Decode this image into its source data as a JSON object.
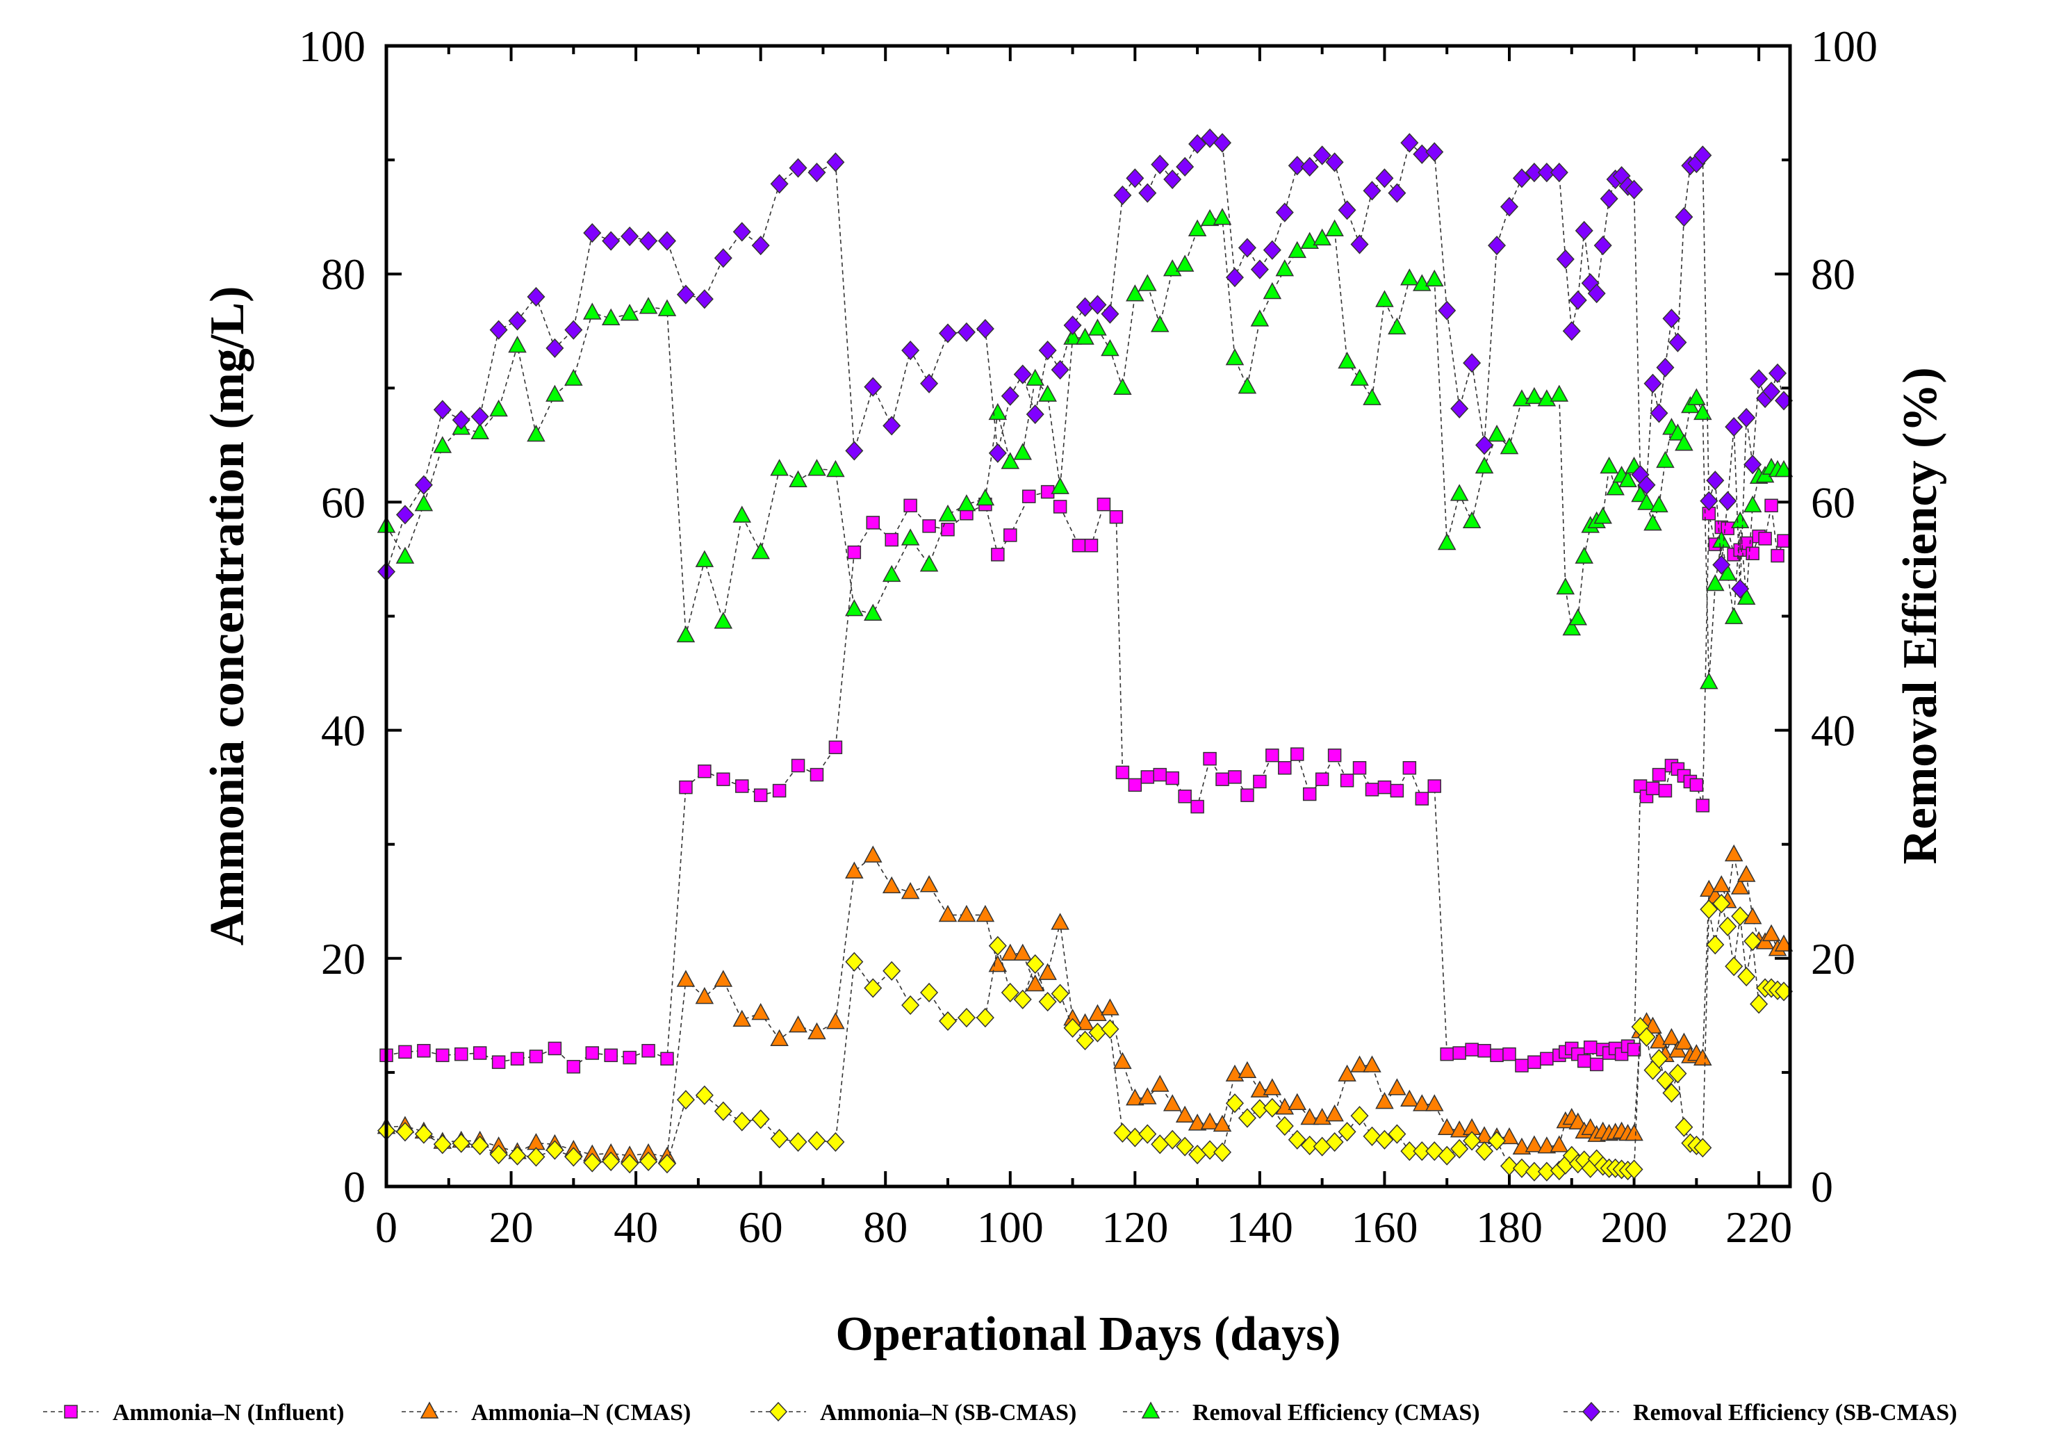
{
  "chart_data": {
    "type": "scatter",
    "xlabel": "Operational Days (days)",
    "ylabel": "Ammonia concentration (mg/L)",
    "y2label": "Removal Efficiency (%)",
    "xlim": [
      0,
      225
    ],
    "ylim": [
      0,
      100
    ],
    "y2lim": [
      0,
      100
    ],
    "xticks": [
      "0",
      "20",
      "40",
      "60",
      "80",
      "100",
      "120",
      "140",
      "160",
      "180",
      "200",
      "220"
    ],
    "yticks": [
      "0",
      "20",
      "40",
      "60",
      "80",
      "100"
    ],
    "y2ticks": [
      "0",
      "20",
      "40",
      "60",
      "80",
      "100"
    ],
    "legend_position": "bottom",
    "series": [
      {
        "name": "Ammonia–N (Influent)",
        "axis": "left",
        "marker": "square",
        "color": "#ff00ff",
        "x": [
          0,
          3,
          6,
          9,
          12,
          15,
          18,
          21,
          24,
          27,
          30,
          33,
          36,
          39,
          42,
          45,
          48,
          51,
          54,
          57,
          60,
          63,
          66,
          69,
          72,
          75,
          78,
          81,
          84,
          87,
          90,
          93,
          96,
          98,
          100,
          103,
          106,
          108,
          111,
          113,
          115,
          117,
          118,
          120,
          122,
          124,
          126,
          128,
          130,
          132,
          134,
          136,
          138,
          140,
          142,
          144,
          146,
          148,
          150,
          152,
          154,
          156,
          158,
          160,
          162,
          164,
          166,
          168,
          170,
          172,
          174,
          176,
          178,
          180,
          182,
          184,
          186,
          188,
          189,
          190,
          191,
          192,
          193,
          194,
          195,
          196,
          197,
          198,
          199,
          200,
          201,
          202,
          203,
          204,
          205,
          206,
          207,
          208,
          209,
          210,
          211,
          212,
          213,
          214,
          215,
          216,
          217,
          218,
          219,
          220,
          221,
          222,
          223,
          224
        ],
        "values": [
          11.5,
          11.8,
          11.9,
          11.5,
          11.6,
          11.7,
          10.9,
          11.2,
          11.4,
          12.1,
          10.5,
          11.7,
          11.5,
          11.3,
          11.9,
          11.2,
          35.0,
          36.4,
          35.7,
          35.1,
          34.3,
          34.7,
          36.9,
          36.1,
          38.5,
          55.6,
          58.2,
          56.7,
          59.7,
          57.9,
          57.6,
          59.0,
          59.8,
          55.4,
          57.1,
          60.5,
          60.9,
          59.6,
          56.2,
          56.2,
          59.8,
          58.7,
          36.3,
          35.2,
          35.9,
          36.1,
          35.8,
          34.2,
          33.3,
          37.5,
          35.7,
          35.9,
          34.3,
          35.5,
          37.8,
          36.7,
          37.9,
          34.4,
          35.7,
          37.8,
          35.6,
          36.7,
          34.8,
          35.0,
          34.7,
          36.7,
          34.0,
          35.1,
          11.6,
          11.7,
          12.0,
          11.9,
          11.5,
          11.6,
          10.6,
          10.9,
          11.2,
          11.5,
          11.8,
          12.1,
          11.6,
          11.0,
          12.2,
          10.7,
          12.0,
          11.7,
          12.1,
          11.6,
          12.3,
          12.0,
          35.1,
          34.2,
          34.9,
          36.1,
          34.7,
          36.9,
          36.6,
          36.0,
          35.5,
          35.2,
          33.4,
          59.0,
          56.3,
          57.8,
          57.7,
          55.4,
          55.8,
          56.4,
          55.5,
          57.0,
          56.8,
          59.7,
          55.3,
          56.6
        ]
      },
      {
        "name": "Ammonia–N (CMAS)",
        "axis": "left",
        "marker": "triangle",
        "color": "#ff7f00",
        "x": [
          0,
          3,
          6,
          9,
          12,
          15,
          18,
          21,
          24,
          27,
          30,
          33,
          36,
          39,
          42,
          45,
          48,
          51,
          54,
          57,
          60,
          63,
          66,
          69,
          72,
          75,
          78,
          81,
          84,
          87,
          90,
          93,
          96,
          98,
          100,
          102,
          104,
          106,
          108,
          110,
          112,
          114,
          116,
          118,
          120,
          122,
          124,
          126,
          128,
          130,
          132,
          134,
          136,
          138,
          140,
          142,
          144,
          146,
          148,
          150,
          152,
          154,
          156,
          158,
          160,
          162,
          164,
          166,
          168,
          170,
          172,
          174,
          176,
          178,
          180,
          182,
          184,
          186,
          188,
          189,
          190,
          191,
          192,
          193,
          194,
          195,
          196,
          197,
          198,
          199,
          200,
          201,
          202,
          203,
          204,
          205,
          206,
          207,
          208,
          209,
          210,
          211,
          212,
          213,
          214,
          215,
          216,
          217,
          218,
          219,
          220,
          221,
          222,
          223,
          224
        ],
        "values": [
          5.2,
          5.3,
          4.8,
          3.9,
          4.0,
          4.0,
          3.5,
          3.0,
          3.8,
          3.7,
          3.2,
          2.8,
          2.9,
          2.7,
          2.9,
          2.6,
          18.1,
          16.6,
          18.1,
          14.6,
          15.2,
          12.9,
          14.1,
          13.5,
          14.4,
          27.6,
          29.0,
          26.3,
          25.8,
          26.4,
          23.8,
          23.8,
          23.8,
          19.4,
          20.4,
          20.4,
          17.7,
          18.7,
          23.1,
          14.7,
          14.3,
          15.1,
          15.6,
          10.9,
          7.7,
          7.8,
          8.9,
          7.2,
          6.2,
          5.5,
          5.6,
          5.4,
          9.8,
          10.1,
          8.4,
          8.6,
          6.9,
          7.3,
          6.0,
          6.0,
          6.3,
          9.8,
          10.6,
          10.6,
          7.4,
          8.6,
          7.6,
          7.2,
          7.2,
          5.1,
          4.9,
          5.1,
          4.4,
          4.3,
          4.3,
          3.4,
          3.6,
          3.5,
          3.6,
          5.7,
          6.0,
          5.6,
          4.8,
          5.1,
          4.5,
          4.8,
          4.6,
          4.7,
          4.8,
          4.6,
          4.6,
          13.6,
          14.4,
          14.0,
          12.7,
          11.5,
          13.0,
          11.9,
          12.6,
          11.4,
          11.6,
          11.2,
          26.0,
          25.4,
          26.4,
          25.0,
          29.1,
          26.2,
          27.3,
          23.6,
          21.5,
          21.4,
          22.1,
          20.8,
          21.2
        ]
      },
      {
        "name": "Ammonia–N (SB-CMAS)",
        "axis": "left",
        "marker": "diamond",
        "color": "#ffff00",
        "x": [
          0,
          3,
          6,
          9,
          12,
          15,
          18,
          21,
          24,
          27,
          30,
          33,
          36,
          39,
          42,
          45,
          48,
          51,
          54,
          57,
          60,
          63,
          66,
          69,
          72,
          75,
          78,
          81,
          84,
          87,
          90,
          93,
          96,
          98,
          100,
          102,
          104,
          106,
          108,
          110,
          112,
          114,
          116,
          118,
          120,
          122,
          124,
          126,
          128,
          130,
          132,
          134,
          136,
          138,
          140,
          142,
          144,
          146,
          148,
          150,
          152,
          154,
          156,
          158,
          160,
          162,
          164,
          166,
          168,
          170,
          172,
          174,
          176,
          178,
          180,
          182,
          184,
          186,
          188,
          189,
          190,
          191,
          192,
          193,
          194,
          195,
          196,
          197,
          198,
          199,
          200,
          201,
          202,
          203,
          204,
          205,
          206,
          207,
          208,
          209,
          210,
          211,
          212,
          213,
          214,
          215,
          216,
          217,
          218,
          219,
          220,
          221,
          222,
          223,
          224
        ],
        "values": [
          4.9,
          4.8,
          4.6,
          3.7,
          3.8,
          3.6,
          2.8,
          2.7,
          2.6,
          3.2,
          2.6,
          2.1,
          2.2,
          2.0,
          2.2,
          2.0,
          7.6,
          8.0,
          6.6,
          5.7,
          5.9,
          4.2,
          3.9,
          4.0,
          3.9,
          19.7,
          17.4,
          18.9,
          15.9,
          17.0,
          14.5,
          14.8,
          14.8,
          21.1,
          17.0,
          16.4,
          19.5,
          16.2,
          16.9,
          13.9,
          12.8,
          13.5,
          13.8,
          4.7,
          4.3,
          4.6,
          3.7,
          4.1,
          3.5,
          2.8,
          3.2,
          3.0,
          7.3,
          6.0,
          6.8,
          6.9,
          5.3,
          4.1,
          3.6,
          3.5,
          3.9,
          4.8,
          6.2,
          4.4,
          4.1,
          4.6,
          3.1,
          3.1,
          3.1,
          2.7,
          3.3,
          4.0,
          3.1,
          4.0,
          1.8,
          1.6,
          1.3,
          1.3,
          1.4,
          1.9,
          2.7,
          2.0,
          2.3,
          1.6,
          2.4,
          1.8,
          1.6,
          1.6,
          1.5,
          1.4,
          1.5,
          14.0,
          13.1,
          10.2,
          11.2,
          9.3,
          8.2,
          9.9,
          5.2,
          3.8,
          3.6,
          3.4,
          24.3,
          21.2,
          24.8,
          22.8,
          19.3,
          23.7,
          18.4,
          21.5,
          16.0,
          17.4,
          17.4,
          17.2,
          17.1
        ]
      },
      {
        "name": "Removal Efficiency (CMAS)",
        "axis": "right",
        "marker": "triangle",
        "color": "#00ff00",
        "x": [
          0,
          3,
          6,
          9,
          12,
          15,
          18,
          21,
          24,
          27,
          30,
          33,
          36,
          39,
          42,
          45,
          48,
          51,
          54,
          57,
          60,
          63,
          66,
          69,
          72,
          75,
          78,
          81,
          84,
          87,
          90,
          93,
          96,
          98,
          100,
          102,
          104,
          106,
          108,
          110,
          112,
          114,
          116,
          118,
          120,
          122,
          124,
          126,
          128,
          130,
          132,
          134,
          136,
          138,
          140,
          142,
          144,
          146,
          148,
          150,
          152,
          154,
          156,
          158,
          160,
          162,
          164,
          166,
          168,
          170,
          172,
          174,
          176,
          178,
          180,
          182,
          184,
          186,
          188,
          189,
          190,
          191,
          192,
          193,
          194,
          195,
          196,
          197,
          198,
          199,
          200,
          201,
          202,
          203,
          204,
          205,
          206,
          207,
          208,
          209,
          210,
          211,
          212,
          213,
          214,
          215,
          216,
          217,
          218,
          219,
          220,
          221,
          222,
          223,
          224
        ],
        "values": [
          57.9,
          55.2,
          59.8,
          64.9,
          66.5,
          66.1,
          68.1,
          73.7,
          65.9,
          69.4,
          70.8,
          76.6,
          76.1,
          76.5,
          77.1,
          76.9,
          48.3,
          54.9,
          49.5,
          58.8,
          55.6,
          62.9,
          61.9,
          62.9,
          62.8,
          50.6,
          50.2,
          53.6,
          56.8,
          54.5,
          58.9,
          59.8,
          60.3,
          67.8,
          63.5,
          64.3,
          70.8,
          69.4,
          61.3,
          74.4,
          74.4,
          75.2,
          73.4,
          70.0,
          78.2,
          79.1,
          75.5,
          80.4,
          80.8,
          83.9,
          84.8,
          84.9,
          72.6,
          70.1,
          76.0,
          78.4,
          80.4,
          82.0,
          82.8,
          83.1,
          83.9,
          72.3,
          70.8,
          69.1,
          77.7,
          75.3,
          79.6,
          79.1,
          79.5,
          56.4,
          60.7,
          58.3,
          63.1,
          65.9,
          64.8,
          69.0,
          69.2,
          69.0,
          69.4,
          52.5,
          48.9,
          49.8,
          55.2,
          57.9,
          58.3,
          58.7,
          63.1,
          61.2,
          62.3,
          61.9,
          63.1,
          60.6,
          59.9,
          58.1,
          59.7,
          63.6,
          66.5,
          66.0,
          65.1,
          68.4,
          69.1,
          67.8,
          44.2,
          52.8,
          56.6,
          53.7,
          49.9,
          58.3,
          51.6,
          59.7,
          62.2,
          62.3,
          63.0,
          62.8,
          62.8
        ]
      },
      {
        "name": "Removal Efficiency (SB-CMAS)",
        "axis": "right",
        "marker": "diamond",
        "color": "#8000ff",
        "x": [
          0,
          3,
          6,
          9,
          12,
          15,
          18,
          21,
          24,
          27,
          30,
          33,
          36,
          39,
          42,
          45,
          48,
          51,
          54,
          57,
          60,
          63,
          66,
          69,
          72,
          75,
          78,
          81,
          84,
          87,
          90,
          93,
          96,
          98,
          100,
          102,
          104,
          106,
          108,
          110,
          112,
          114,
          116,
          118,
          120,
          122,
          124,
          126,
          128,
          130,
          132,
          134,
          136,
          138,
          140,
          142,
          144,
          146,
          148,
          150,
          152,
          154,
          156,
          158,
          160,
          162,
          164,
          166,
          168,
          170,
          172,
          174,
          176,
          178,
          180,
          182,
          184,
          186,
          188,
          189,
          190,
          191,
          192,
          193,
          194,
          195,
          196,
          197,
          198,
          199,
          200,
          201,
          202,
          203,
          204,
          205,
          206,
          207,
          208,
          209,
          210,
          211,
          212,
          213,
          214,
          215,
          216,
          217,
          218,
          219,
          220,
          221,
          222,
          223,
          224
        ],
        "values": [
          53.9,
          58.9,
          61.5,
          68.1,
          67.2,
          67.5,
          75.1,
          75.9,
          78.0,
          73.5,
          75.1,
          83.6,
          82.9,
          83.3,
          82.9,
          82.9,
          78.2,
          77.8,
          81.4,
          83.7,
          82.5,
          87.9,
          89.3,
          88.9,
          89.8,
          64.5,
          70.1,
          66.7,
          73.3,
          70.4,
          74.8,
          74.9,
          75.2,
          64.3,
          69.3,
          71.2,
          67.7,
          73.3,
          71.6,
          75.5,
          77.1,
          77.3,
          76.5,
          86.9,
          88.4,
          87.1,
          89.6,
          88.3,
          89.4,
          91.4,
          91.9,
          91.5,
          79.7,
          82.3,
          80.4,
          82.1,
          85.4,
          89.5,
          89.4,
          90.4,
          89.8,
          85.6,
          82.6,
          87.3,
          88.4,
          87.1,
          91.5,
          90.5,
          90.7,
          76.8,
          68.2,
          72.2,
          65.0,
          82.5,
          85.9,
          88.4,
          88.9,
          88.9,
          88.9,
          81.3,
          75.0,
          77.7,
          83.8,
          79.2,
          78.3,
          82.5,
          86.6,
          88.3,
          88.6,
          87.7,
          87.4,
          62.4,
          61.5,
          70.4,
          67.8,
          71.8,
          76.1,
          74.0,
          85.0,
          89.5,
          89.7,
          90.4,
          60.1,
          61.9,
          54.5,
          60.1,
          66.6,
          52.4,
          67.4,
          63.3,
          70.8,
          69.1,
          69.7,
          71.3,
          68.9
        ]
      }
    ]
  }
}
